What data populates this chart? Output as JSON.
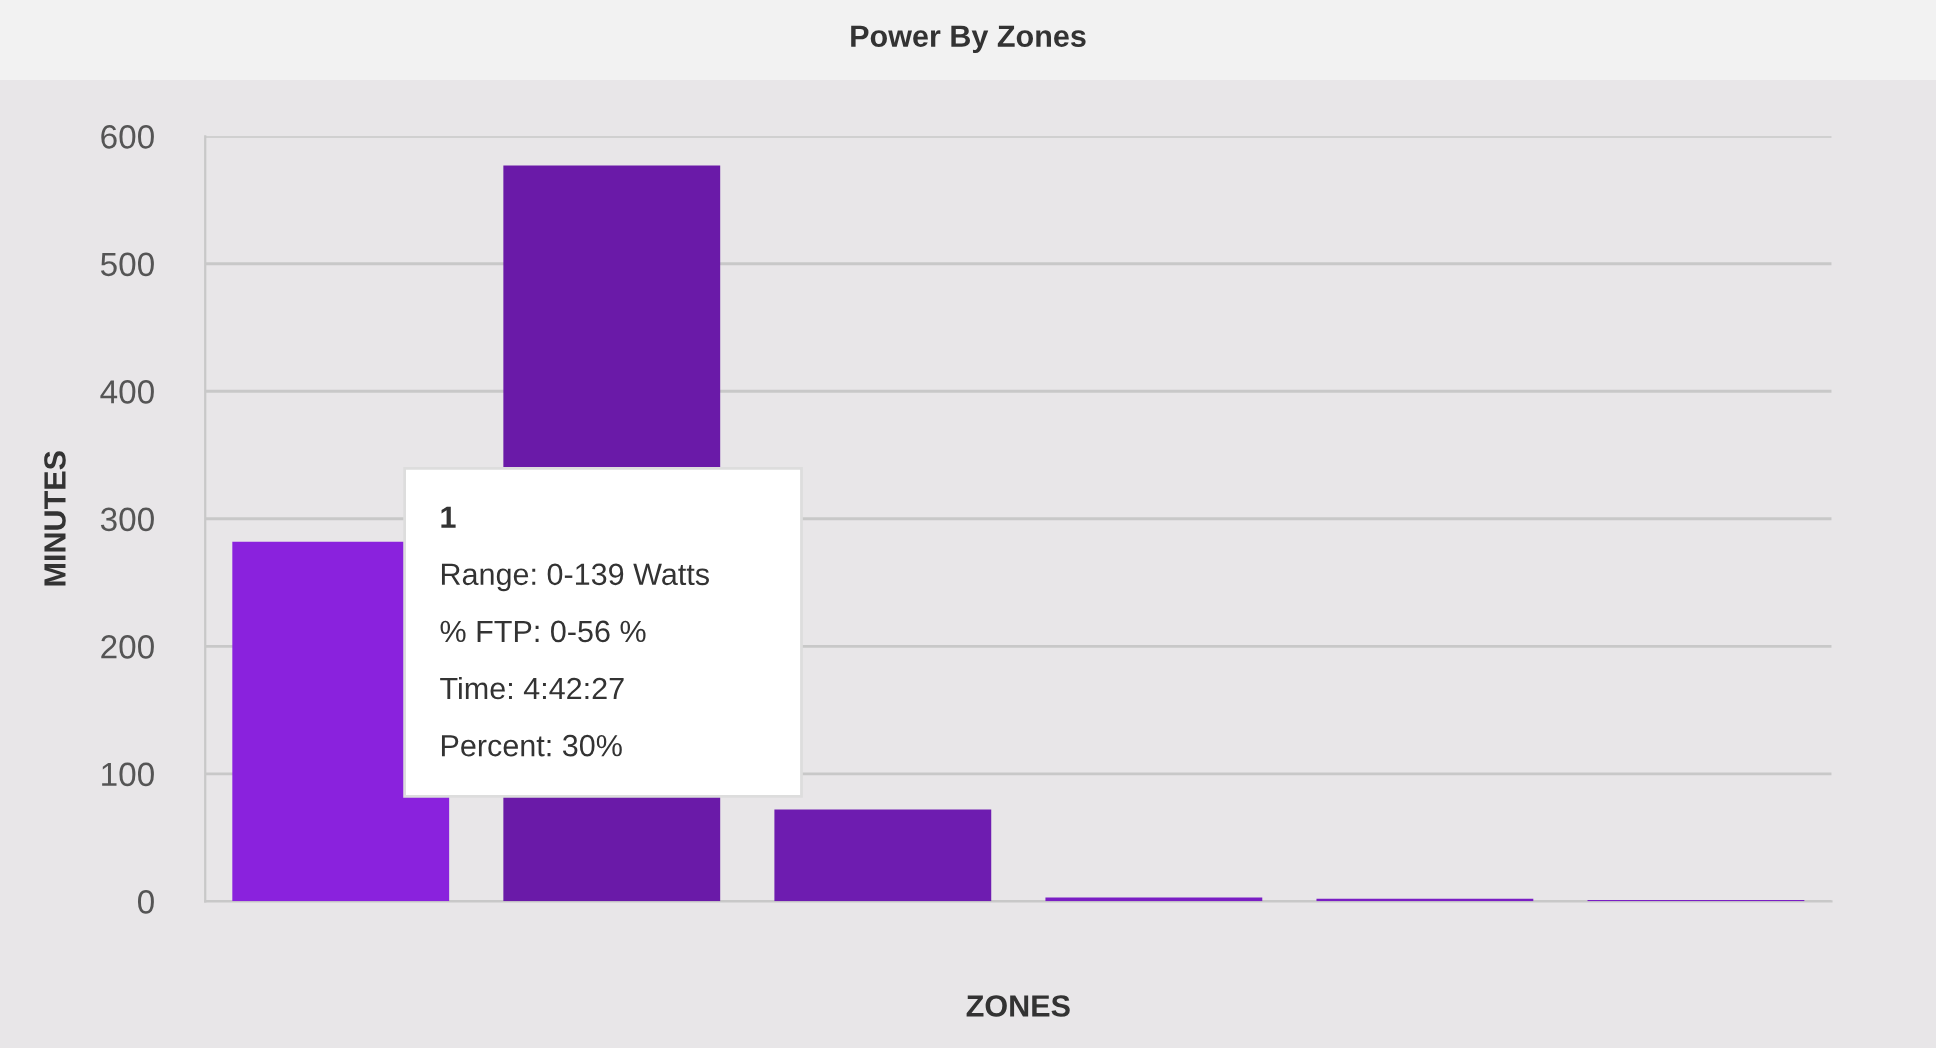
{
  "chart_data": {
    "type": "bar",
    "title": "Power By Zones",
    "xlabel": "ZONES",
    "ylabel": "MINUTES",
    "categories": [
      null,
      null,
      null,
      null,
      null,
      null
    ],
    "values": [
      282,
      577,
      72,
      3,
      2,
      1
    ],
    "colors": [
      "#8a22dd",
      "#6a1aa8",
      "#6e1cb0",
      "#7a1ec4",
      "#7a1ec4",
      "#7a1ec4"
    ],
    "ylim": [
      0,
      600
    ],
    "yticks": [
      0,
      100,
      200,
      300,
      400,
      500,
      600
    ],
    "grid": "y",
    "annotations": [
      "1",
      "Range: 0-139 Watts",
      "% FTP: 0-56 %",
      "Time: 4:42:27",
      "Percent: 30%"
    ]
  }
}
